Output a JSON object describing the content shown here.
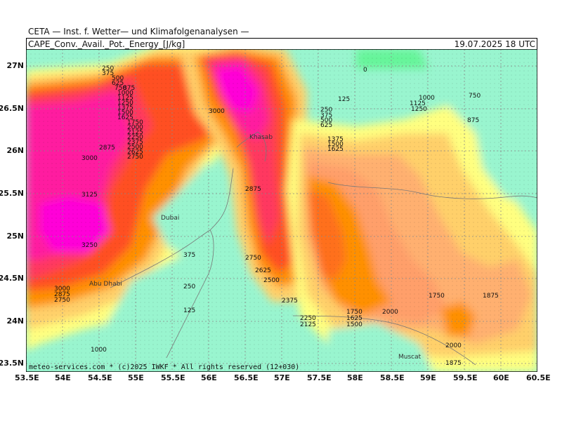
{
  "header": {
    "institute": "CETA — Inst. f. Wetter— und Klimafolgenanalysen —",
    "parameter": "CAPE_Conv._Avail._Pot._Energy_[J/kg]",
    "valid_time": "19.07.2025  18 UTC"
  },
  "footer": {
    "copyright": "meteo-services.com * (c)2025 IWKF * All rights reserved (12+030)"
  },
  "axes": {
    "lon_labels": [
      "53.5E",
      "54E",
      "54.5E",
      "55E",
      "55.5E",
      "56E",
      "56.5E",
      "57E",
      "57.5E",
      "58E",
      "58.5E",
      "59E",
      "59.5E",
      "60E",
      "60.5E"
    ],
    "lat_labels": [
      "27N",
      "26.5N",
      "26N",
      "25.5N",
      "25N",
      "24.5N",
      "24N",
      "23.5N"
    ]
  },
  "places": {
    "dubai": "Dubai",
    "abu_dhabi": "Abu Dhabi",
    "khasab": "Khasab",
    "muscat": "Muscat"
  },
  "contour_labels": [
    "250",
    "375",
    "500",
    "625",
    "750",
    "875",
    "1000",
    "1125",
    "1250",
    "1375",
    "1500",
    "1625",
    "1750",
    "2000",
    "2125",
    "2250",
    "2375",
    "2500",
    "2625",
    "2750",
    "2875",
    "3000",
    "3125",
    "3250",
    "0",
    "125",
    "250",
    "375",
    "500",
    "625",
    "750",
    "875",
    "1000",
    "1125",
    "1250",
    "1375",
    "1500",
    "1625",
    "1750",
    "1875",
    "2000",
    "1875",
    "2000",
    "1750",
    "1625",
    "1500",
    "2250",
    "2125",
    "2375",
    "2500",
    "2625",
    "2750",
    "2875",
    "3000",
    "3000",
    "2875",
    "2750",
    "125",
    "250",
    "375",
    "1000"
  ],
  "colors": {
    "cape_0": "#66f59a",
    "cape_low": "#99f5cf",
    "cape_500": "#ffff80",
    "cape_1000": "#ffe066",
    "cape_1250": "#ffd06a",
    "cape_1500": "#ffb070",
    "cape_1750": "#ff9f6a",
    "cape_2000": "#ff9000",
    "cape_2250": "#ff6f1a",
    "cape_2500": "#ff5020",
    "cape_2750": "#ff3860",
    "cape_3000": "#ff1fa0",
    "cape_3250": "#ff00d8"
  }
}
